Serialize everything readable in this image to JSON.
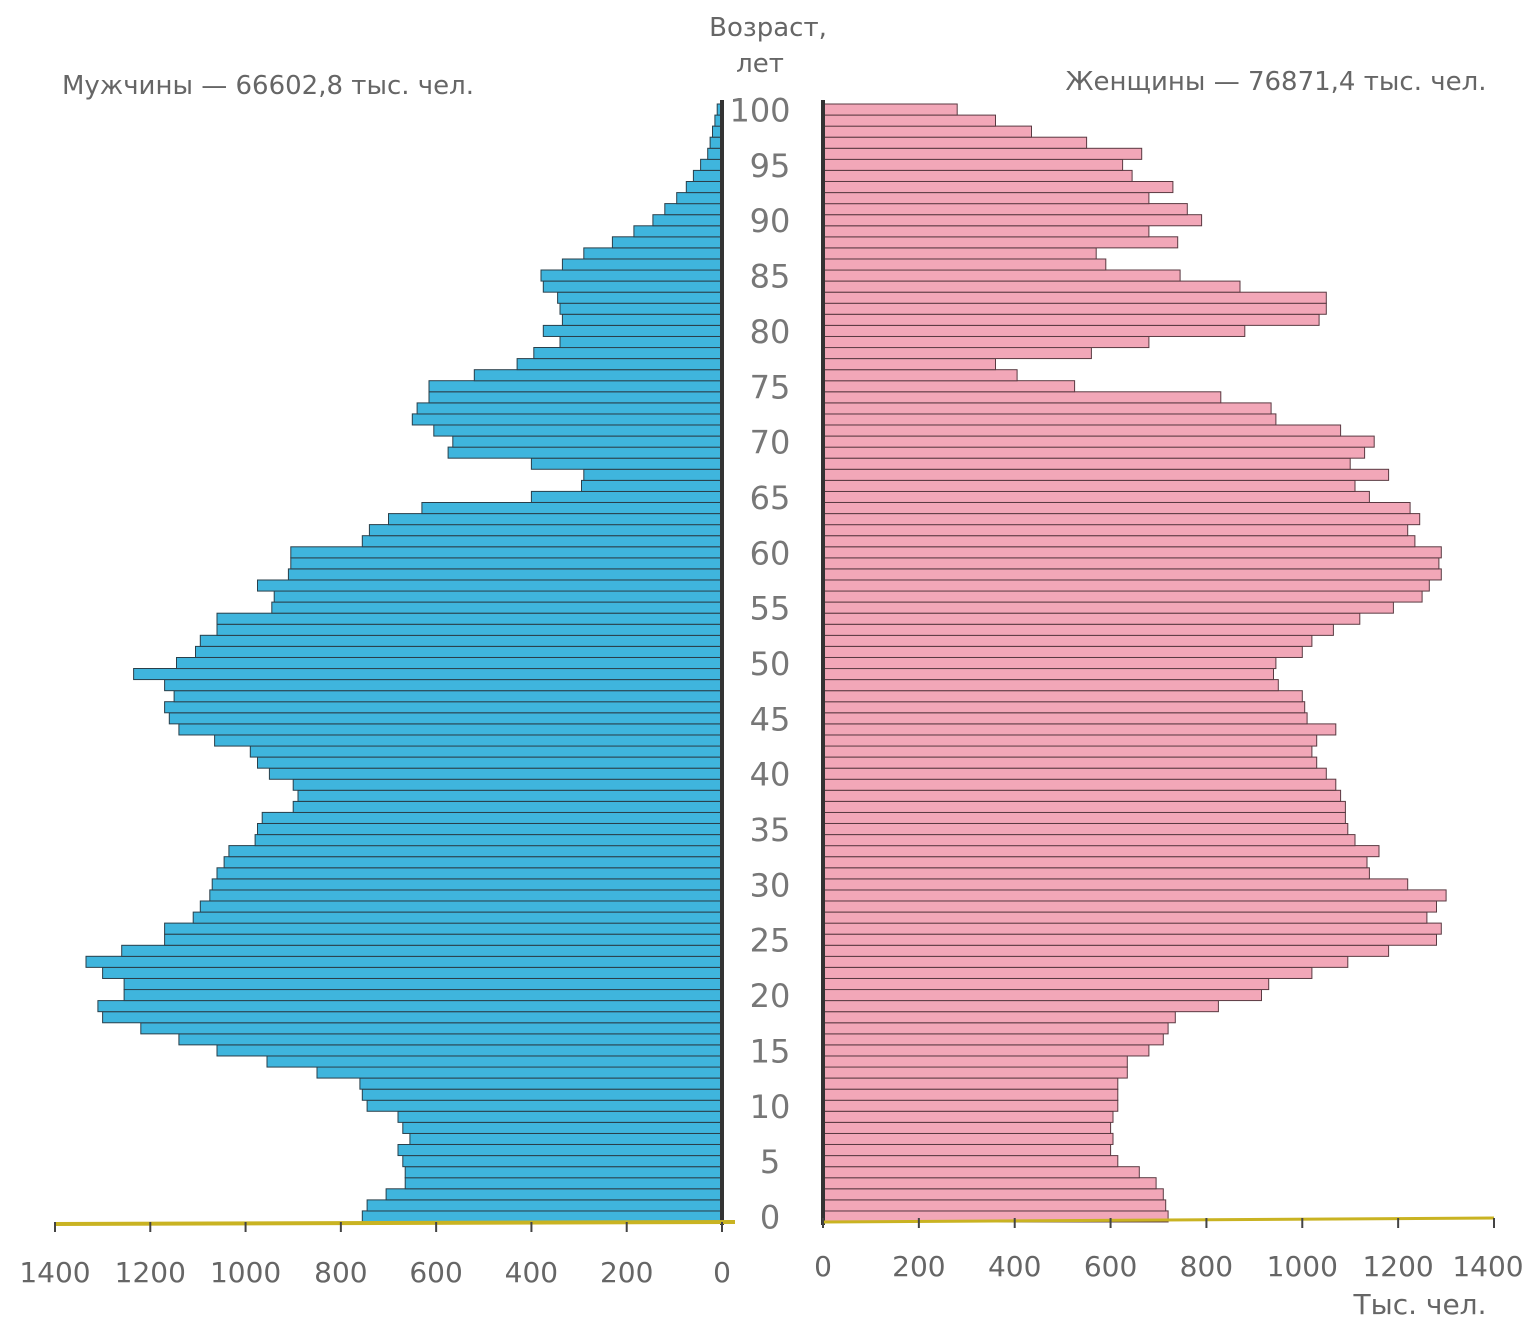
{
  "chart_data": {
    "type": "population-pyramid",
    "age_axis_title": "Возраст,",
    "age_axis_unit": "лет",
    "male_title": "Мужчины — 66602,8 тыс. чел.",
    "female_title": "Женщины — 76871,4 тыс. чел.",
    "x_unit_label": "Тыс. чел.",
    "xlim": [
      0,
      1400
    ],
    "ylim": [
      0,
      100
    ],
    "age_ticks": [
      0,
      5,
      10,
      15,
      20,
      25,
      30,
      35,
      40,
      45,
      50,
      55,
      60,
      65,
      70,
      75,
      80,
      85,
      90,
      95,
      100
    ],
    "x_ticks": [
      1400,
      1200,
      1000,
      800,
      600,
      400,
      200,
      0
    ],
    "x_ticks_female": [
      0,
      200,
      400,
      600,
      800,
      1000,
      1200,
      1400
    ],
    "ages": [
      0,
      1,
      2,
      3,
      4,
      5,
      6,
      7,
      8,
      9,
      10,
      11,
      12,
      13,
      14,
      15,
      16,
      17,
      18,
      19,
      20,
      21,
      22,
      23,
      24,
      25,
      26,
      27,
      28,
      29,
      30,
      31,
      32,
      33,
      34,
      35,
      36,
      37,
      38,
      39,
      40,
      41,
      42,
      43,
      44,
      45,
      46,
      47,
      48,
      49,
      50,
      51,
      52,
      53,
      54,
      55,
      56,
      57,
      58,
      59,
      60,
      61,
      62,
      63,
      64,
      65,
      66,
      67,
      68,
      69,
      70,
      71,
      72,
      73,
      74,
      75,
      76,
      77,
      78,
      79,
      80,
      81,
      82,
      83,
      84,
      85,
      86,
      87,
      88,
      89,
      90,
      91,
      92,
      93,
      94,
      95,
      96,
      97,
      98,
      99,
      100
    ],
    "series": [
      {
        "name": "Мужчины",
        "values": [
          755,
          745,
          705,
          665,
          665,
          670,
          680,
          655,
          670,
          680,
          745,
          755,
          760,
          850,
          955,
          1060,
          1140,
          1220,
          1300,
          1310,
          1255,
          1255,
          1300,
          1335,
          1260,
          1170,
          1170,
          1110,
          1095,
          1075,
          1070,
          1060,
          1045,
          1035,
          980,
          975,
          965,
          900,
          890,
          900,
          950,
          975,
          990,
          1065,
          1140,
          1160,
          1170,
          1150,
          1170,
          1235,
          1145,
          1105,
          1095,
          1060,
          1060,
          945,
          940,
          975,
          910,
          905,
          905,
          755,
          740,
          700,
          630,
          400,
          295,
          290,
          400,
          575,
          565,
          605,
          650,
          640,
          615,
          615,
          520,
          430,
          395,
          340,
          375,
          335,
          340,
          345,
          375,
          380,
          335,
          290,
          230,
          185,
          145,
          120,
          95,
          75,
          60,
          45,
          30,
          25,
          20,
          15,
          10
        ]
      },
      {
        "name": "Женщины",
        "values": [
          720,
          715,
          710,
          695,
          660,
          615,
          600,
          605,
          600,
          605,
          615,
          615,
          615,
          635,
          635,
          680,
          710,
          720,
          735,
          825,
          915,
          930,
          1020,
          1095,
          1180,
          1280,
          1290,
          1260,
          1280,
          1300,
          1220,
          1140,
          1135,
          1160,
          1110,
          1095,
          1090,
          1090,
          1080,
          1070,
          1050,
          1030,
          1020,
          1030,
          1070,
          1010,
          1005,
          1000,
          950,
          940,
          945,
          1000,
          1020,
          1065,
          1120,
          1190,
          1250,
          1265,
          1290,
          1285,
          1290,
          1235,
          1220,
          1245,
          1225,
          1140,
          1110,
          1180,
          1100,
          1130,
          1150,
          1080,
          945,
          935,
          830,
          525,
          405,
          360,
          560,
          680,
          880,
          1035,
          1050,
          1050,
          870,
          745,
          590,
          570,
          740,
          680,
          790,
          760,
          680,
          730,
          645,
          625,
          665,
          550,
          435,
          360,
          280
        ]
      }
    ]
  }
}
